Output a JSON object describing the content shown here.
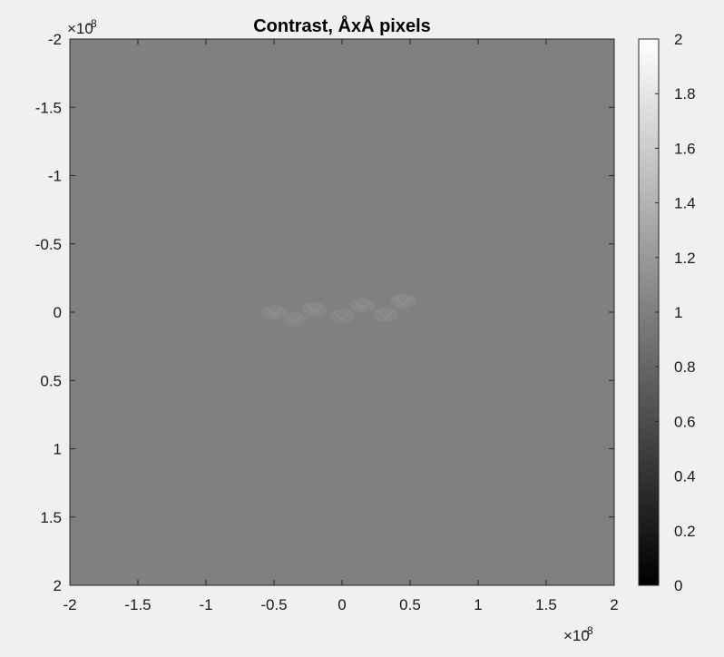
{
  "chart_data": {
    "type": "heatmap",
    "title": "Contrast, ÅxÅ pixels",
    "colormap": "gray",
    "background_value": 1.0,
    "x": {
      "lim": [
        -2,
        2
      ],
      "ticks": [
        -2,
        -1.5,
        -1,
        -0.5,
        0,
        0.5,
        1,
        1.5,
        2
      ],
      "tick_labels": [
        "-2",
        "-1.5",
        "-1",
        "-0.5",
        "0",
        "0.5",
        "1",
        "1.5",
        "2"
      ],
      "multiplier": "×10",
      "exponent": "-8"
    },
    "y": {
      "lim": [
        -2,
        2
      ],
      "reversed": true,
      "ticks": [
        -2,
        -1.5,
        -1,
        -0.5,
        0,
        0.5,
        1,
        1.5,
        2
      ],
      "tick_labels": [
        "-2",
        "-1.5",
        "-1",
        "-0.5",
        "0",
        "0.5",
        "1",
        "1.5",
        "2"
      ],
      "multiplier": "×10",
      "exponent": "-8"
    },
    "colorbar": {
      "lim": [
        0,
        2
      ],
      "ticks": [
        0,
        0.2,
        0.4,
        0.6,
        0.8,
        1,
        1.2,
        1.4,
        1.6,
        1.8,
        2
      ],
      "tick_labels": [
        "0",
        "0.2",
        "0.4",
        "0.6",
        "0.8",
        "1",
        "1.2",
        "1.4",
        "1.6",
        "1.8",
        "2"
      ]
    },
    "features": [
      {
        "x": -0.5,
        "y": 0.0,
        "value": 1.07
      },
      {
        "x": -0.35,
        "y": 0.05,
        "value": 1.06
      },
      {
        "x": -0.2,
        "y": -0.02,
        "value": 1.07
      },
      {
        "x": 0.0,
        "y": 0.03,
        "value": 1.06
      },
      {
        "x": 0.15,
        "y": -0.05,
        "value": 1.07
      },
      {
        "x": 0.32,
        "y": 0.02,
        "value": 1.06
      },
      {
        "x": 0.45,
        "y": -0.08,
        "value": 1.08
      }
    ],
    "grid": false,
    "legend": "none"
  }
}
